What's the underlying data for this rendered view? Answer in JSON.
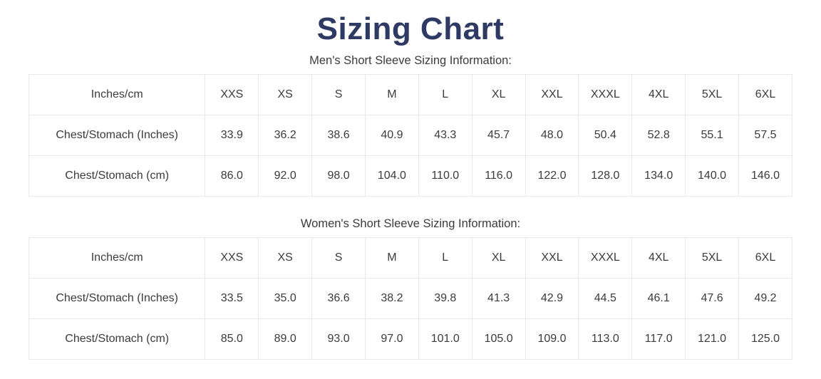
{
  "page": {
    "title": "Sizing Chart"
  },
  "colors": {
    "title": "#2e3a63",
    "text": "#3b3b3b",
    "border": "#e8e8e8",
    "background": "#ffffff"
  },
  "chart_data": [
    {
      "type": "table",
      "title": "Men's Short Sleeve Sizing Information:",
      "header": [
        "Inches/cm",
        "XXS",
        "XS",
        "S",
        "M",
        "L",
        "XL",
        "XXL",
        "XXXL",
        "4XL",
        "5XL",
        "6XL"
      ],
      "rows": [
        {
          "label": "Chest/Stomach (Inches)",
          "values": [
            "33.9",
            "36.2",
            "38.6",
            "40.9",
            "43.3",
            "45.7",
            "48.0",
            "50.4",
            "52.8",
            "55.1",
            "57.5"
          ]
        },
        {
          "label": "Chest/Stomach (cm)",
          "values": [
            "86.0",
            "92.0",
            "98.0",
            "104.0",
            "110.0",
            "116.0",
            "122.0",
            "128.0",
            "134.0",
            "140.0",
            "146.0"
          ]
        }
      ]
    },
    {
      "type": "table",
      "title": "Women's Short Sleeve Sizing Information:",
      "header": [
        "Inches/cm",
        "XXS",
        "XS",
        "S",
        "M",
        "L",
        "XL",
        "XXL",
        "XXXL",
        "4XL",
        "5XL",
        "6XL"
      ],
      "rows": [
        {
          "label": "Chest/Stomach (Inches)",
          "values": [
            "33.5",
            "35.0",
            "36.6",
            "38.2",
            "39.8",
            "41.3",
            "42.9",
            "44.5",
            "46.1",
            "47.6",
            "49.2"
          ]
        },
        {
          "label": "Chest/Stomach (cm)",
          "values": [
            "85.0",
            "89.0",
            "93.0",
            "97.0",
            "101.0",
            "105.0",
            "109.0",
            "113.0",
            "117.0",
            "121.0",
            "125.0"
          ]
        }
      ]
    }
  ]
}
